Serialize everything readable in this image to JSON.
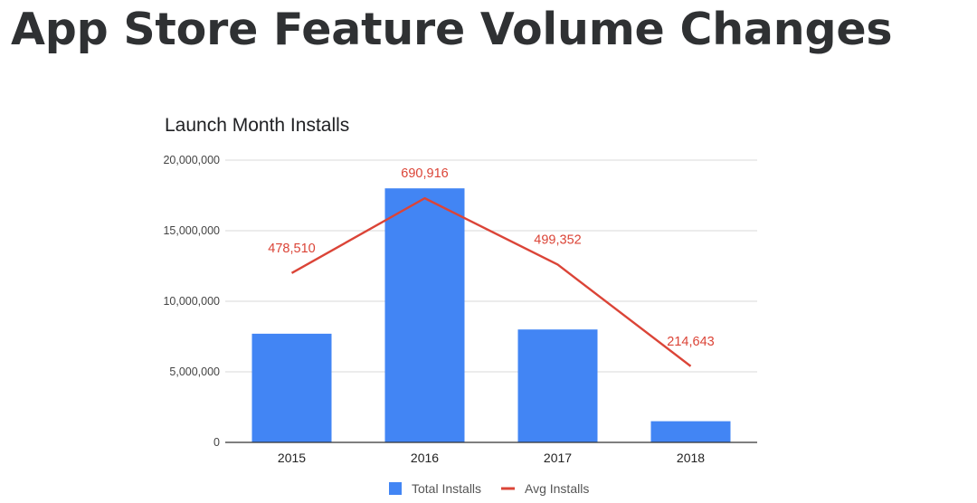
{
  "page": {
    "title": "App Store Feature Volume Changes"
  },
  "chart_data": {
    "type": "bar",
    "title": "Launch Month Installs",
    "categories": [
      "2015",
      "2016",
      "2017",
      "2018"
    ],
    "ylim": [
      0,
      20000000
    ],
    "y_ticks": [
      0,
      5000000,
      10000000,
      15000000,
      20000000
    ],
    "y_tick_labels": [
      "0",
      "5,000,000",
      "10,000,000",
      "15,000,000",
      "20,000,000"
    ],
    "grid": true,
    "legend_position": "bottom",
    "series": [
      {
        "name": "Total Installs",
        "type": "bar",
        "color": "#4285f4",
        "values": [
          7700000,
          18000000,
          8000000,
          1500000
        ]
      },
      {
        "name": "Avg Installs",
        "type": "line",
        "color": "#db4437",
        "values": [
          478510,
          690916,
          499352,
          214643
        ],
        "data_labels": [
          "478,510",
          "690,916",
          "499,352",
          "214,643"
        ],
        "plotted_on_left_axis_as": [
          12000000,
          17300000,
          12600000,
          5400000
        ]
      }
    ]
  }
}
